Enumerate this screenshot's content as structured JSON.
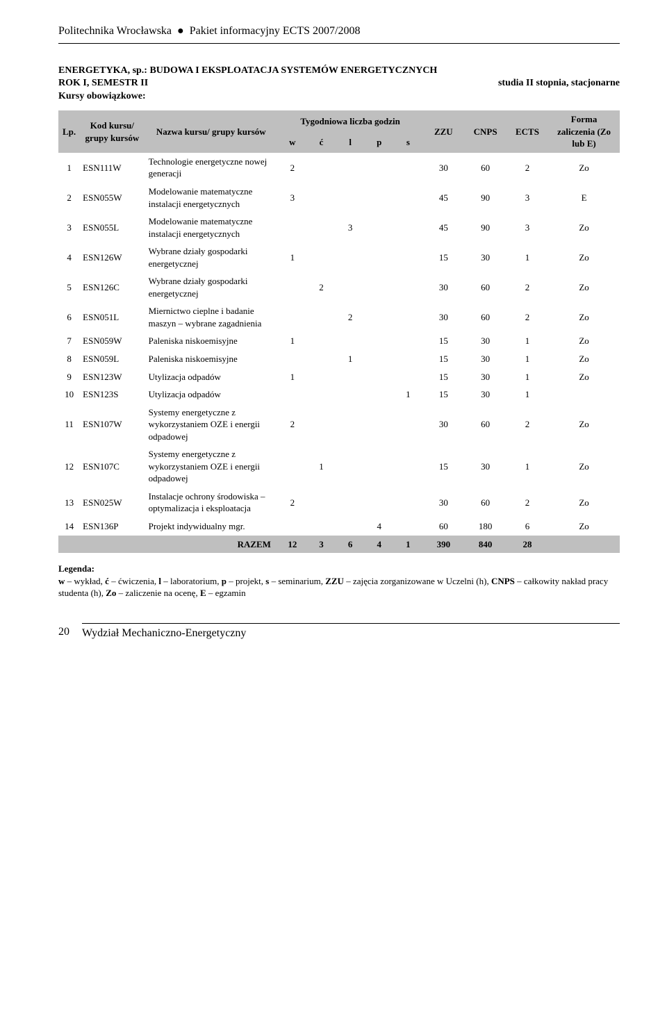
{
  "header": {
    "uni": "Politechnika Wrocławska",
    "bullet": "●",
    "pkg": "Pakiet informacyjny ECTS 2007/2008"
  },
  "intro": {
    "line1": "ENERGETYKA, sp.: BUDOWA I EKSPLOATACJA SYSTEMÓW ENERGETYCZNYCH",
    "line2a": "ROK I, SEMESTR II",
    "line2b": "studia II stopnia, stacjonarne",
    "line3": "Kursy obowiązkowe:"
  },
  "table": {
    "head": {
      "lp": "Lp.",
      "kod": "Kod kursu/ grupy kursów",
      "nazwa": "Nazwa kursu/ grupy kursów",
      "tyg": "Tygodniowa liczba godzin",
      "w": "w",
      "c": "ć",
      "l": "l",
      "p": "p",
      "s": "s",
      "zzu": "ZZU",
      "cnps": "CNPS",
      "ects": "ECTS",
      "forma": "Forma zaliczenia (Zo lub E)"
    },
    "rows": [
      {
        "lp": "1",
        "kod": "ESN111W",
        "nazwa": "Technologie energetyczne nowej generacji",
        "w": "2",
        "c": "",
        "l": "",
        "p": "",
        "s": "",
        "zzu": "30",
        "cnps": "60",
        "ects": "2",
        "fz": "Zo"
      },
      {
        "lp": "2",
        "kod": "ESN055W",
        "nazwa": "Modelowanie matematyczne instalacji energetycznych",
        "w": "3",
        "c": "",
        "l": "",
        "p": "",
        "s": "",
        "zzu": "45",
        "cnps": "90",
        "ects": "3",
        "fz": "E"
      },
      {
        "lp": "3",
        "kod": "ESN055L",
        "nazwa": "Modelowanie matematyczne instalacji energetycznych",
        "w": "",
        "c": "",
        "l": "3",
        "p": "",
        "s": "",
        "zzu": "45",
        "cnps": "90",
        "ects": "3",
        "fz": "Zo"
      },
      {
        "lp": "4",
        "kod": "ESN126W",
        "nazwa": "Wybrane działy gospodarki energetycznej",
        "w": "1",
        "c": "",
        "l": "",
        "p": "",
        "s": "",
        "zzu": "15",
        "cnps": "30",
        "ects": "1",
        "fz": "Zo"
      },
      {
        "lp": "5",
        "kod": "ESN126C",
        "nazwa": "Wybrane działy gospodarki energetycznej",
        "w": "",
        "c": "2",
        "l": "",
        "p": "",
        "s": "",
        "zzu": "30",
        "cnps": "60",
        "ects": "2",
        "fz": "Zo"
      },
      {
        "lp": "6",
        "kod": "ESN051L",
        "nazwa": "Miernictwo cieplne i badanie maszyn – wybrane zagadnienia",
        "w": "",
        "c": "",
        "l": "2",
        "p": "",
        "s": "",
        "zzu": "30",
        "cnps": "60",
        "ects": "2",
        "fz": "Zo"
      },
      {
        "lp": "7",
        "kod": "ESN059W",
        "nazwa": "Paleniska niskoemisyjne",
        "w": "1",
        "c": "",
        "l": "",
        "p": "",
        "s": "",
        "zzu": "15",
        "cnps": "30",
        "ects": "1",
        "fz": "Zo"
      },
      {
        "lp": "8",
        "kod": "ESN059L",
        "nazwa": "Paleniska niskoemisyjne",
        "w": "",
        "c": "",
        "l": "1",
        "p": "",
        "s": "",
        "zzu": "15",
        "cnps": "30",
        "ects": "1",
        "fz": "Zo"
      },
      {
        "lp": "9",
        "kod": "ESN123W",
        "nazwa": "Utylizacja odpadów",
        "w": "1",
        "c": "",
        "l": "",
        "p": "",
        "s": "",
        "zzu": "15",
        "cnps": "30",
        "ects": "1",
        "fz": "Zo"
      },
      {
        "lp": "10",
        "kod": "ESN123S",
        "nazwa": "Utylizacja odpadów",
        "w": "",
        "c": "",
        "l": "",
        "p": "",
        "s": "1",
        "zzu": "15",
        "cnps": "30",
        "ects": "1",
        "fz": ""
      },
      {
        "lp": "11",
        "kod": "ESN107W",
        "nazwa": "Systemy energetyczne z wykorzystaniem OZE i energii odpadowej",
        "w": "2",
        "c": "",
        "l": "",
        "p": "",
        "s": "",
        "zzu": "30",
        "cnps": "60",
        "ects": "2",
        "fz": "Zo"
      },
      {
        "lp": "12",
        "kod": "ESN107C",
        "nazwa": "Systemy energetyczne z wykorzystaniem OZE i energii odpadowej",
        "w": "",
        "c": "1",
        "l": "",
        "p": "",
        "s": "",
        "zzu": "15",
        "cnps": "30",
        "ects": "1",
        "fz": "Zo"
      },
      {
        "lp": "13",
        "kod": "ESN025W",
        "nazwa": "Instalacje ochrony środowiska – optymalizacja i eksploatacja",
        "w": "2",
        "c": "",
        "l": "",
        "p": "",
        "s": "",
        "zzu": "30",
        "cnps": "60",
        "ects": "2",
        "fz": "Zo"
      },
      {
        "lp": "14",
        "kod": "ESN136P",
        "nazwa": "Projekt indywidualny mgr.",
        "w": "",
        "c": "",
        "l": "",
        "p": "4",
        "s": "",
        "zzu": "60",
        "cnps": "180",
        "ects": "6",
        "fz": "Zo"
      }
    ],
    "total": {
      "label": "RAZEM",
      "w": "12",
      "c": "3",
      "l": "6",
      "p": "4",
      "s": "1",
      "zzu": "390",
      "cnps": "840",
      "ects": "28",
      "fz": ""
    }
  },
  "legenda": {
    "hdr": "Legenda:",
    "body": "w – wykład, ć – ćwiczenia, l – laboratorium, p – projekt, s – seminarium, ZZU – zajęcia zorganizowane w Uczelni (h), CNPS – całkowity nakład pracy studenta (h), Zo – zaliczenie na ocenę, E – egzamin"
  },
  "footer": {
    "page": "20",
    "dept": "Wydział Mechaniczno-Energetyczny"
  }
}
